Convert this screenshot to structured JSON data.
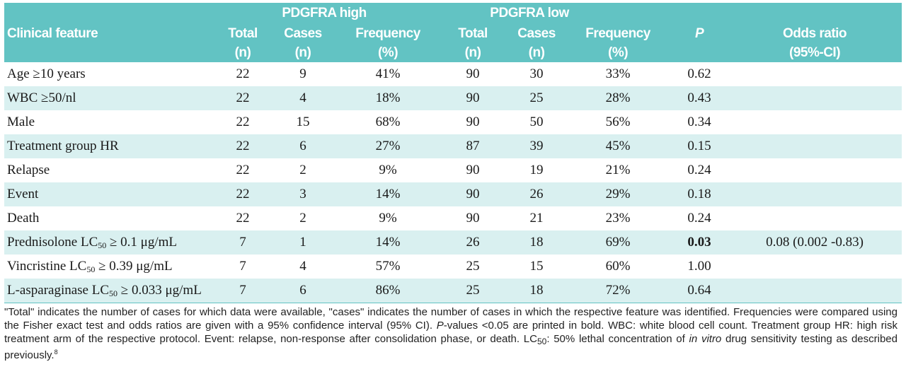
{
  "header": {
    "group_high": "PDGFRA high",
    "group_low": "PDGFRA low",
    "clinical_feature": "Clinical feature",
    "total": "Total",
    "cases": "Cases",
    "n": "(n)",
    "frequency": "Frequency",
    "percent": "(%)",
    "p": "P",
    "odds_ratio": "Odds ratio",
    "ci": "(95%-CI)"
  },
  "rows": [
    {
      "feature": "Age ≥10 years",
      "hi_total": "22",
      "hi_cases": "9",
      "hi_freq": "41%",
      "lo_total": "90",
      "lo_cases": "30",
      "lo_freq": "33%",
      "p": "0.62",
      "or": ""
    },
    {
      "feature": "WBC ≥50/nl",
      "hi_total": "22",
      "hi_cases": "4",
      "hi_freq": "18%",
      "lo_total": "90",
      "lo_cases": "25",
      "lo_freq": "28%",
      "p": "0.43",
      "or": ""
    },
    {
      "feature": "Male",
      "hi_total": "22",
      "hi_cases": "15",
      "hi_freq": "68%",
      "lo_total": "90",
      "lo_cases": "50",
      "lo_freq": "56%",
      "p": "0.34",
      "or": ""
    },
    {
      "feature": "Treatment group HR",
      "hi_total": "22",
      "hi_cases": "6",
      "hi_freq": "27%",
      "lo_total": "87",
      "lo_cases": "39",
      "lo_freq": "45%",
      "p": "0.15",
      "or": ""
    },
    {
      "feature": "Relapse",
      "hi_total": "22",
      "hi_cases": "2",
      "hi_freq": "9%",
      "lo_total": "90",
      "lo_cases": "19",
      "lo_freq": "21%",
      "p": "0.24",
      "or": ""
    },
    {
      "feature": "Event",
      "hi_total": "22",
      "hi_cases": "3",
      "hi_freq": "14%",
      "lo_total": "90",
      "lo_cases": "26",
      "lo_freq": "29%",
      "p": "0.18",
      "or": ""
    },
    {
      "feature": "Death",
      "hi_total": "22",
      "hi_cases": "2",
      "hi_freq": "9%",
      "lo_total": "90",
      "lo_cases": "21",
      "lo_freq": "23%",
      "p": "0.24",
      "or": ""
    },
    {
      "feature_pre": "Prednisolone LC",
      "feature_sub": "50",
      "feature_post": " ≥ 0.1 μg/mL",
      "hi_total": "7",
      "hi_cases": "1",
      "hi_freq": "14%",
      "lo_total": "26",
      "lo_cases": "18",
      "lo_freq": "69%",
      "p": "0.03",
      "or": "0.08 (0.002 -0.83)"
    },
    {
      "feature_pre": "Vincristine LC",
      "feature_sub": "50",
      "feature_post": " ≥ 0.39 μg/mL",
      "hi_total": "7",
      "hi_cases": "4",
      "hi_freq": "57%",
      "lo_total": "25",
      "lo_cases": "15",
      "lo_freq": "60%",
      "p": "1.00",
      "or": ""
    },
    {
      "feature_pre": "L-asparaginase LC",
      "feature_sub": "50",
      "feature_post": " ≥ 0.033 μg/mL",
      "hi_total": "7",
      "hi_cases": "6",
      "hi_freq": "86%",
      "lo_total": "25",
      "lo_cases": "18",
      "lo_freq": "72%",
      "p": "0.64",
      "or": ""
    }
  ],
  "footnote": {
    "part1": "\"Total\" indicates the number of cases for which data were available, \"cases\" indicates the number of cases in which the respective feature was identified. Frequencies were compared using the Fisher exact test and odds ratios are given with a 95% confidence interval (95% CI). ",
    "p_italic": "P",
    "part2": "-values <0.05 are printed in bold. WBC: white blood cell count. Treatment group HR: high risk treatment arm of the respective protocol. Event: relapse, non-response after consolidation phase, or death. LC",
    "lc_sub": "50",
    "part3": ": 50% lethal concentration of ",
    "in_vitro": "in vitro",
    "part4": " drug sensitivity testing as described previously.",
    "ref": "8"
  }
}
